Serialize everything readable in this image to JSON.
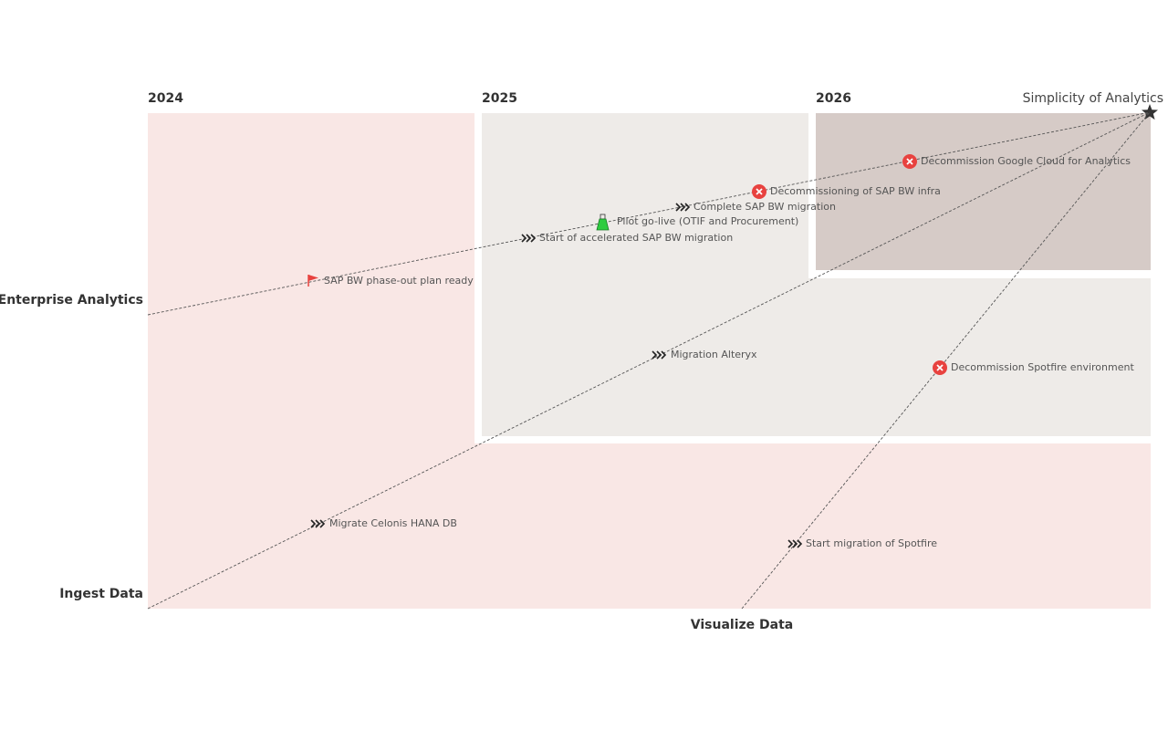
{
  "years": [
    "2024",
    "2025",
    "2026"
  ],
  "axes": {
    "enterprise": "Enterprise Analytics",
    "ingest": "Ingest Data",
    "visualize": "Visualize Data"
  },
  "goal": "Simplicity of Analytics",
  "colors": {
    "zone_light": "#f9e7e5",
    "zone_grey": "#eeebe8",
    "zone_dark": "#d6cbc7",
    "decommission": "#e8423f",
    "pilot": "#2ecc40",
    "flag": "#e8423f",
    "path": "#555555"
  },
  "milestones": [
    {
      "label": "SAP BW phase-out plan ready",
      "icon": "flag-icon"
    },
    {
      "label": "Start of accelerated SAP BW migration",
      "icon": "chevrons-icon"
    },
    {
      "label": "Pilot go-live (OTIF and Procurement)",
      "icon": "flask-icon"
    },
    {
      "label": "Complete SAP BW migration",
      "icon": "chevrons-icon"
    },
    {
      "label": "Decommissioning of SAP BW infra",
      "icon": "close-circle-icon"
    },
    {
      "label": "Decommission Google Cloud for Analytics",
      "icon": "close-circle-icon"
    },
    {
      "label": "Migration Alteryx",
      "icon": "chevrons-icon"
    },
    {
      "label": "Decommission Spotfire environment",
      "icon": "close-circle-icon"
    },
    {
      "label": "Migrate Celonis HANA DB",
      "icon": "chevrons-icon"
    },
    {
      "label": "Start migration of Spotfire",
      "icon": "chevrons-icon"
    }
  ]
}
